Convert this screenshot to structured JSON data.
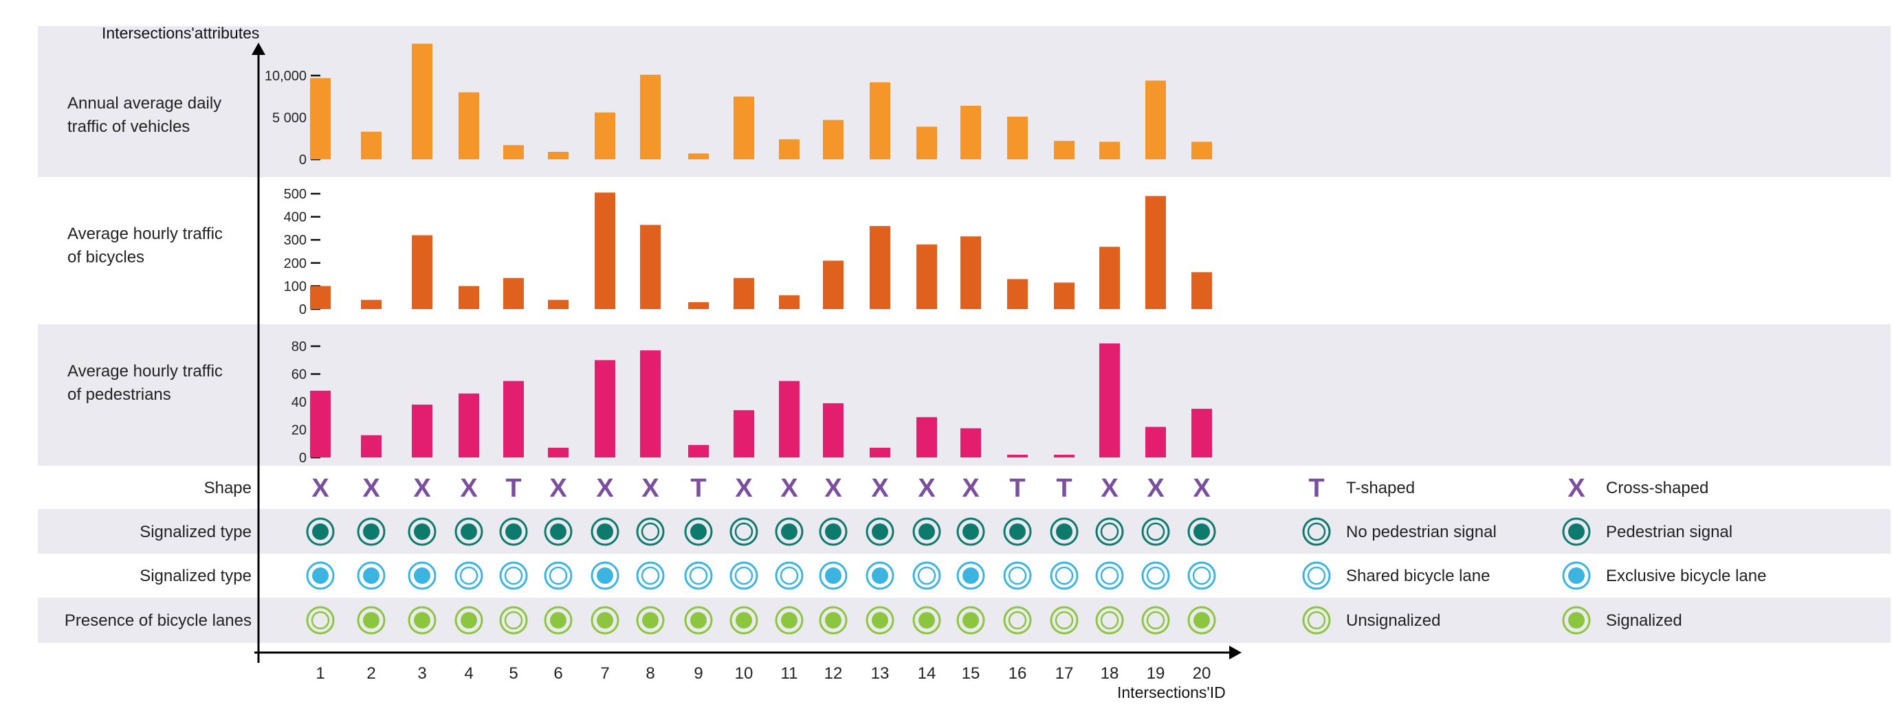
{
  "chart_data": {
    "type": "bar",
    "y_axis_title": "Intersections'attributes",
    "x_axis_title": "Intersections'ID",
    "x": [
      1,
      2,
      3,
      4,
      5,
      6,
      7,
      8,
      9,
      10,
      11,
      12,
      13,
      14,
      15,
      16,
      17,
      18,
      19,
      20
    ],
    "x_labels": [
      "1",
      "2",
      "3",
      "4",
      "5",
      "6",
      "7",
      "8",
      "9",
      "10",
      "11",
      "12",
      "13",
      "14",
      "15",
      "16",
      "17",
      "18",
      "19",
      "20"
    ],
    "panels": [
      {
        "id": "vehicles",
        "label_lines": [
          "Annual average daily",
          "traffic of vehicles"
        ],
        "color": "#F4962A",
        "band_color": "#ECEAF1",
        "ylim": [
          0,
          16000
        ],
        "ticks": [
          0,
          5000,
          10000
        ],
        "tick_labels": [
          "0",
          "5 000",
          "10,000"
        ],
        "values": [
          9700,
          3300,
          13800,
          8000,
          1700,
          900,
          5600,
          10100,
          700,
          7500,
          2400,
          4700,
          9200,
          3900,
          6400,
          5100,
          2200,
          2100,
          9400,
          2100
        ]
      },
      {
        "id": "bicycles",
        "label_lines": [
          "Average hourly traffic",
          "of bicycles"
        ],
        "color": "#E0611E",
        "band_color": "#FFFFFF",
        "ylim": [
          0,
          550
        ],
        "ticks": [
          0,
          100,
          200,
          300,
          400,
          500
        ],
        "tick_labels": [
          "0",
          "100",
          "200",
          "300",
          "400",
          "500"
        ],
        "values": [
          100,
          40,
          320,
          100,
          135,
          40,
          505,
          365,
          30,
          135,
          60,
          210,
          360,
          280,
          315,
          130,
          115,
          270,
          490,
          160
        ]
      },
      {
        "id": "pedestrians",
        "label_lines": [
          "Average hourly traffic",
          "of pedestrians"
        ],
        "color": "#E41E6E",
        "band_color": "#ECEAF1",
        "ylim": [
          0,
          90
        ],
        "ticks": [
          0,
          20,
          40,
          60,
          80
        ],
        "tick_labels": [
          "0",
          "20",
          "40",
          "60",
          "80"
        ],
        "values": [
          48,
          16,
          38,
          46,
          55,
          7,
          70,
          77,
          9,
          34,
          55,
          39,
          7,
          29,
          21,
          2,
          2,
          82,
          22,
          35
        ]
      }
    ],
    "categorical_rows": [
      {
        "id": "shape",
        "label": "Shape",
        "band_color": "#FFFFFF",
        "values": [
          "X",
          "X",
          "X",
          "X",
          "T",
          "X",
          "X",
          "X",
          "T",
          "X",
          "X",
          "X",
          "X",
          "X",
          "X",
          "T",
          "T",
          "X",
          "X",
          "X"
        ],
        "legend": [
          {
            "value": "T",
            "symbol": "T",
            "label": "T-shaped"
          },
          {
            "value": "X",
            "symbol": "X",
            "label": "Cross-shaped"
          }
        ]
      },
      {
        "id": "pedestrian-signal",
        "label": "Signalized type",
        "band_color": "#ECEAF1",
        "values": [
          "ped",
          "ped",
          "ped",
          "ped",
          "ped",
          "ped",
          "ped",
          "none",
          "ped",
          "none",
          "ped",
          "ped",
          "ped",
          "ped",
          "ped",
          "ped",
          "ped",
          "none",
          "none",
          "ped"
        ],
        "legend": [
          {
            "value": "none",
            "label": "No pedestrian signal"
          },
          {
            "value": "ped",
            "label": "Pedestrian signal"
          }
        ]
      },
      {
        "id": "bicycle-lane",
        "label": "Signalized type",
        "band_color": "#FFFFFF",
        "values": [
          "excl",
          "excl",
          "excl",
          "shared",
          "shared",
          "shared",
          "excl",
          "shared",
          "shared",
          "shared",
          "shared",
          "excl",
          "excl",
          "shared",
          "excl",
          "shared",
          "shared",
          "shared",
          "shared",
          "shared"
        ],
        "legend": [
          {
            "value": "shared",
            "label": "Shared bicycle lane"
          },
          {
            "value": "excl",
            "label": "Exclusive bicycle lane"
          }
        ]
      },
      {
        "id": "signalization",
        "label": "Presence of bicycle lanes",
        "band_color": "#ECEAF1",
        "values": [
          "uns",
          "sig",
          "sig",
          "sig",
          "uns",
          "sig",
          "sig",
          "sig",
          "sig",
          "sig",
          "sig",
          "sig",
          "sig",
          "sig",
          "sig",
          "uns",
          "uns",
          "uns",
          "uns",
          "sig"
        ],
        "legend": [
          {
            "value": "uns",
            "label": "Unsignalized"
          },
          {
            "value": "sig",
            "label": "Signalized"
          }
        ]
      }
    ],
    "colors": {
      "shape_symbol": "#7B4F9E",
      "pedestrian_ring": "#0E7A6E",
      "pedestrian_fill": "#0E7A6E",
      "bicycle_ring": "#3BB4E0",
      "bicycle_fill": "#3BB4E0",
      "signal_ring": "#8CC63F",
      "signal_fill": "#8CC63F",
      "axis": "#000000",
      "text": "#222222"
    }
  }
}
